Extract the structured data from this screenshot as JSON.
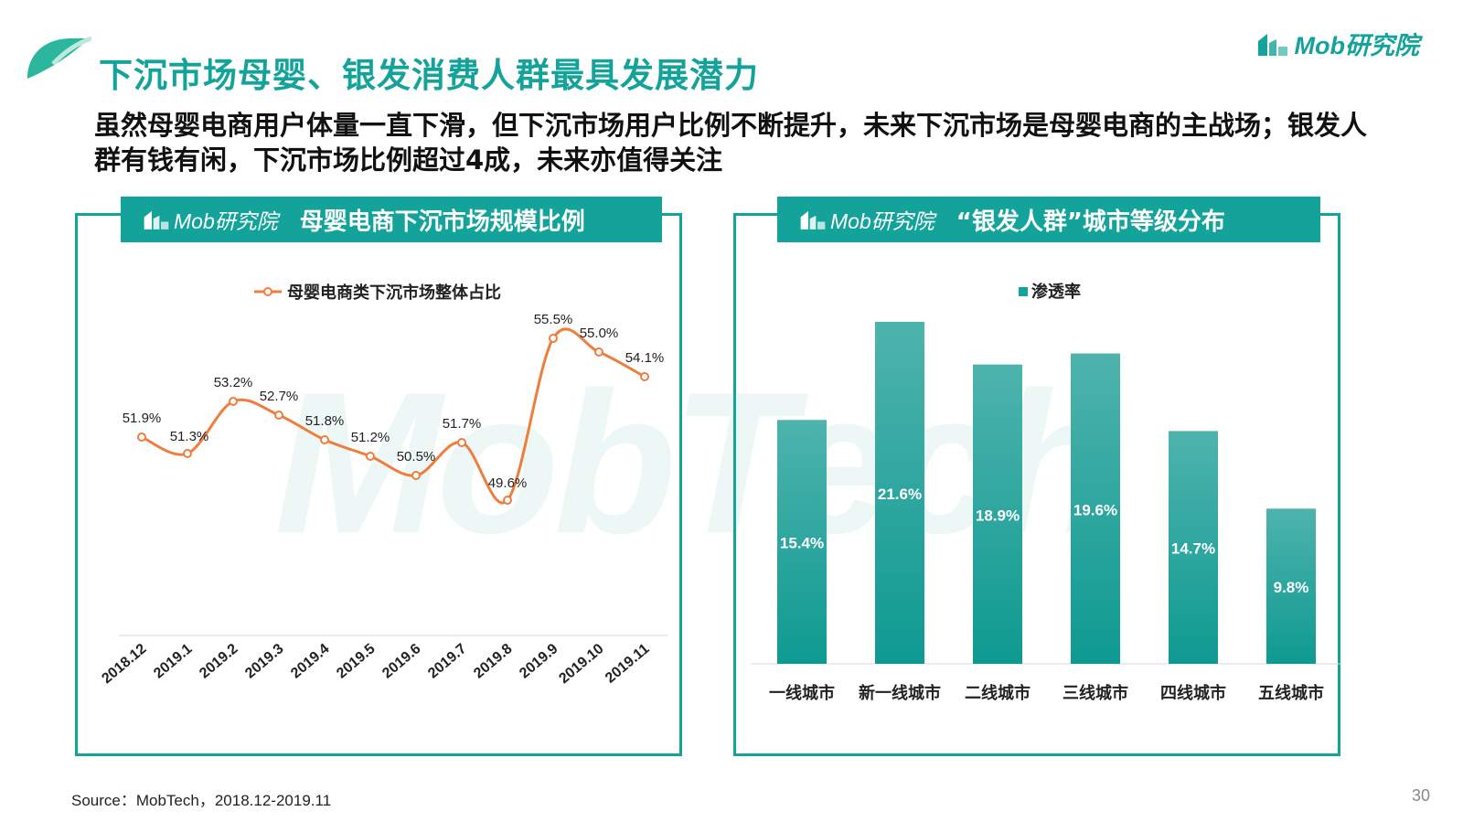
{
  "title": "下沉市场母婴、银发消费人群最具发展潜力",
  "subtitle": "虽然母婴电商用户体量一直下滑，但下沉市场用户比例不断提升，未来下沉市场是母婴电商的主战场；银发人群有钱有闲，下沉市场比例超过4成，未来亦值得关注",
  "brand": {
    "logo_text": "Mob研究院",
    "watermark": "MobTech",
    "accent": "#14a39a"
  },
  "panels": [
    {
      "logo_text": "Mob研究院",
      "title": "母婴电商下沉市场规模比例"
    },
    {
      "logo_text": "Mob研究院",
      "title": "“银发人群”城市等级分布"
    }
  ],
  "chart_data": [
    {
      "type": "line",
      "categories": [
        "2018.12",
        "2019.1",
        "2019.2",
        "2019.3",
        "2019.4",
        "2019.5",
        "2019.6",
        "2019.7",
        "2019.8",
        "2019.9",
        "2019.10",
        "2019.11"
      ],
      "series": [
        {
          "name": "母婴电商类下沉市场整体占比",
          "values": [
            51.9,
            51.3,
            53.2,
            52.7,
            51.8,
            51.2,
            50.5,
            51.7,
            49.6,
            55.5,
            55.0,
            54.1
          ],
          "labels": [
            "51.9%",
            "51.3%",
            "53.2%",
            "52.7%",
            "51.8%",
            "51.2%",
            "50.5%",
            "51.7%",
            "49.6%",
            "55.5%",
            "55.0%",
            "54.1%"
          ],
          "color": "#ef7d3c"
        }
      ],
      "ylim": [
        45,
        57
      ],
      "legend": "top-center",
      "grid": false
    },
    {
      "type": "bar",
      "categories": [
        "一线城市",
        "新一线城市",
        "二线城市",
        "三线城市",
        "四线城市",
        "五线城市"
      ],
      "series": [
        {
          "name": "渗透率",
          "values": [
            15.4,
            21.6,
            18.9,
            19.6,
            14.7,
            9.8
          ],
          "labels": [
            "15.4%",
            "21.6%",
            "18.9%",
            "19.6%",
            "14.7%",
            "9.8%"
          ],
          "color": "#14a39a"
        }
      ],
      "ylim": [
        0,
        22
      ],
      "legend": "top-center",
      "grid": false
    }
  ],
  "source": "Source：MobTech，2018.12-2019.11",
  "page_number": "30"
}
